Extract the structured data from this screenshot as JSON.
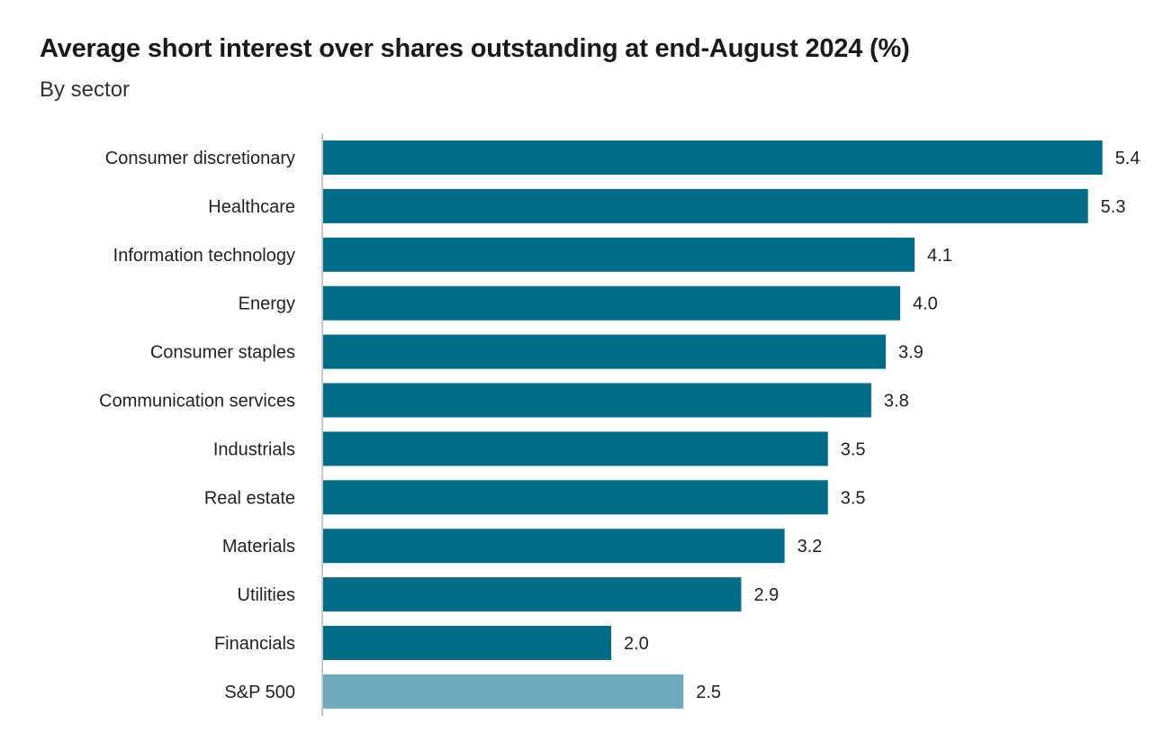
{
  "chart_data": {
    "type": "bar",
    "orientation": "horizontal",
    "title": "Average short interest over shares outstanding at end-August 2024 (%)",
    "subtitle": "By sector",
    "categories": [
      "Consumer discretionary",
      "Healthcare",
      "Information technology",
      "Energy",
      "Consumer staples",
      "Communication services",
      "Industrials",
      "Real estate",
      "Materials",
      "Utilities",
      "Financials",
      "S&P 500"
    ],
    "values": [
      5.4,
      5.3,
      4.1,
      4.0,
      3.9,
      3.8,
      3.5,
      3.5,
      3.2,
      2.9,
      2.0,
      2.5
    ],
    "data_labels": [
      "5.4",
      "5.3",
      "4.1",
      "4.0",
      "3.9",
      "3.8",
      "3.5",
      "3.5",
      "3.2",
      "2.9",
      "2.0",
      "2.5"
    ],
    "colors": {
      "sector": "#006c87",
      "benchmark": "#6daabb"
    },
    "xlim": [
      0,
      5.4
    ],
    "grid": false,
    "legend": "none"
  }
}
